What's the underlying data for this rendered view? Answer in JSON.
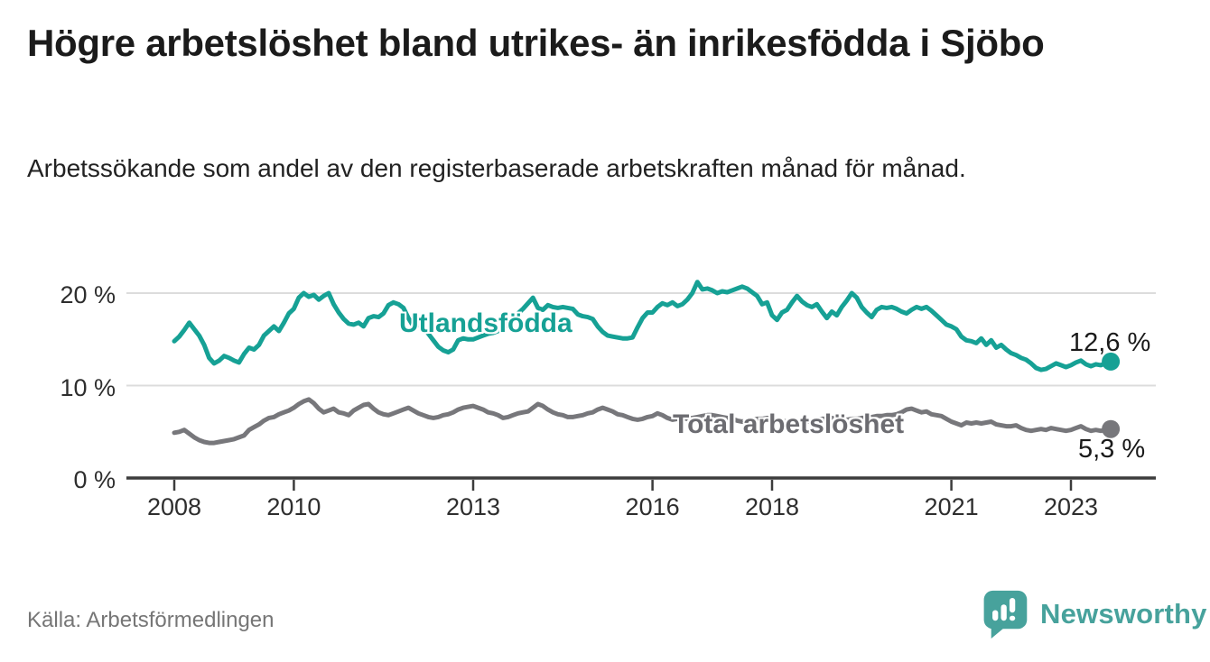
{
  "title": "Högre arbetslöshet bland utrikes- än inrikesfödda i Sjöbo",
  "subtitle": "Arbetssökande som andel av den registerbaserade arbetskraften månad för månad.",
  "source": "Källa: Arbetsförmedlingen",
  "logo": {
    "text": "Newsworthy",
    "icon": "newsworthy-speech-bubble-bar-chart",
    "color": "#47a29c"
  },
  "colors": {
    "foreign_series": "#16a195",
    "total_series": "#77777b",
    "axis": "#3c3c3c",
    "gridline": "#dcdcdc",
    "title_text": "#1b1b1b",
    "tick_text": "#2e2e2e",
    "muted_text": "#767676"
  },
  "chart_data": {
    "type": "line",
    "title": "Högre arbetslöshet bland utrikes- än inrikesfödda i Sjöbo",
    "subtitle": "Arbetssökande som andel av den registerbaserade arbetskraften månad för månad.",
    "x_unit": "month",
    "x_range": [
      "2008-01",
      "2023-09"
    ],
    "ylim": [
      0,
      22
    ],
    "grid": "horizontal",
    "legend_position": "inline-labels-on-lines",
    "yticks": [
      {
        "value": 0,
        "label": "0 %"
      },
      {
        "value": 10,
        "label": "10 %"
      },
      {
        "value": 20,
        "label": "20 %"
      }
    ],
    "xticks": [
      {
        "value": 2008,
        "label": "2008"
      },
      {
        "value": 2010,
        "label": "2010"
      },
      {
        "value": 2013,
        "label": "2013"
      },
      {
        "value": 2016,
        "label": "2016"
      },
      {
        "value": 2018,
        "label": "2018"
      },
      {
        "value": 2021,
        "label": "2021"
      },
      {
        "value": 2023,
        "label": "2023"
      }
    ],
    "series": [
      {
        "id": "utlandsfodda",
        "name": "Utlandsfödda",
        "color": "#16a195",
        "end_value": 12.6,
        "end_label": "12,6 %",
        "values": [
          14.8,
          15.3,
          16.0,
          16.8,
          16.1,
          15.4,
          14.4,
          13.0,
          12.4,
          12.7,
          13.2,
          13.0,
          12.7,
          12.5,
          13.4,
          14.1,
          13.9,
          14.4,
          15.4,
          15.9,
          16.4,
          15.9,
          16.8,
          17.8,
          18.3,
          19.5,
          20.0,
          19.6,
          19.8,
          19.3,
          19.7,
          20.0,
          18.8,
          17.9,
          17.2,
          16.7,
          16.6,
          16.8,
          16.4,
          17.3,
          17.5,
          17.4,
          17.8,
          18.7,
          19.0,
          18.8,
          18.4,
          17.3,
          16.4,
          16.6,
          16.3,
          15.6,
          14.9,
          14.2,
          13.8,
          13.6,
          13.9,
          14.9,
          15.1,
          15.0,
          15.0,
          15.2,
          15.4,
          15.6,
          15.7,
          15.9,
          16.2,
          16.7,
          17.2,
          17.8,
          18.3,
          18.9,
          19.5,
          18.4,
          18.2,
          18.7,
          18.5,
          18.4,
          18.5,
          18.4,
          18.3,
          17.7,
          17.5,
          17.4,
          17.2,
          16.4,
          15.8,
          15.4,
          15.3,
          15.2,
          15.1,
          15.1,
          15.2,
          16.3,
          17.3,
          17.9,
          17.9,
          18.5,
          18.9,
          18.7,
          19.0,
          18.6,
          18.8,
          19.3,
          20.0,
          21.2,
          20.4,
          20.5,
          20.3,
          20.0,
          20.2,
          20.1,
          20.3,
          20.5,
          20.7,
          20.5,
          20.1,
          19.7,
          18.8,
          19.0,
          17.6,
          17.1,
          17.9,
          18.2,
          19.0,
          19.7,
          19.1,
          18.7,
          18.5,
          18.8,
          18.0,
          17.3,
          18.0,
          17.6,
          18.5,
          19.2,
          20.0,
          19.5,
          18.5,
          17.9,
          17.4,
          18.2,
          18.5,
          18.4,
          18.5,
          18.3,
          18.0,
          17.8,
          18.2,
          18.5,
          18.3,
          18.5,
          18.1,
          17.6,
          17.1,
          16.6,
          16.4,
          16.1,
          15.3,
          14.9,
          14.8,
          14.6,
          15.1,
          14.4,
          14.9,
          14.1,
          14.4,
          13.9,
          13.5,
          13.3,
          13.0,
          12.8,
          12.4,
          11.9,
          11.7,
          11.8,
          12.1,
          12.4,
          12.2,
          12.0,
          12.2,
          12.5,
          12.7,
          12.3,
          12.1,
          12.3,
          12.2,
          12.4,
          12.6
        ]
      },
      {
        "id": "total",
        "name": "Total arbetslöshet",
        "color": "#77777b",
        "end_value": 5.3,
        "end_label": "5,3 %",
        "values": [
          4.9,
          5.0,
          5.2,
          4.8,
          4.4,
          4.1,
          3.9,
          3.8,
          3.8,
          3.9,
          4.0,
          4.1,
          4.2,
          4.4,
          4.6,
          5.2,
          5.5,
          5.8,
          6.2,
          6.5,
          6.6,
          6.9,
          7.1,
          7.3,
          7.6,
          8.0,
          8.3,
          8.5,
          8.1,
          7.5,
          7.1,
          7.3,
          7.5,
          7.1,
          7.0,
          6.8,
          7.3,
          7.6,
          7.9,
          8.0,
          7.5,
          7.1,
          6.9,
          6.8,
          7.0,
          7.2,
          7.4,
          7.6,
          7.3,
          7.0,
          6.8,
          6.6,
          6.5,
          6.6,
          6.8,
          6.9,
          7.1,
          7.4,
          7.6,
          7.7,
          7.8,
          7.6,
          7.4,
          7.1,
          7.0,
          6.8,
          6.5,
          6.6,
          6.8,
          7.0,
          7.1,
          7.2,
          7.6,
          8.0,
          7.8,
          7.4,
          7.1,
          6.9,
          6.8,
          6.6,
          6.6,
          6.7,
          6.8,
          7.0,
          7.1,
          7.4,
          7.6,
          7.4,
          7.2,
          6.9,
          6.8,
          6.6,
          6.4,
          6.3,
          6.4,
          6.6,
          6.7,
          7.0,
          6.8,
          6.5,
          6.3,
          6.4,
          6.5,
          6.4,
          6.5,
          6.6,
          6.7,
          6.8,
          6.8,
          6.7,
          6.6,
          6.5,
          6.4,
          6.2,
          6.1,
          6.2,
          6.3,
          6.4,
          6.4,
          6.5,
          6.4,
          6.3,
          6.2,
          6.1,
          6.0,
          5.9,
          6.0,
          6.1,
          6.2,
          6.3,
          6.4,
          6.4,
          6.5,
          6.4,
          6.3,
          6.3,
          6.4,
          6.4,
          6.5,
          6.5,
          6.6,
          6.7,
          6.7,
          6.8,
          6.8,
          6.9,
          7.1,
          7.4,
          7.5,
          7.3,
          7.1,
          7.2,
          6.9,
          6.8,
          6.7,
          6.4,
          6.1,
          5.9,
          5.7,
          6.0,
          5.9,
          6.0,
          5.9,
          6.0,
          6.1,
          5.8,
          5.7,
          5.6,
          5.6,
          5.7,
          5.4,
          5.2,
          5.1,
          5.2,
          5.3,
          5.2,
          5.4,
          5.3,
          5.2,
          5.1,
          5.2,
          5.4,
          5.6,
          5.3,
          5.1,
          5.2,
          5.1,
          5.2,
          5.3
        ]
      }
    ]
  }
}
